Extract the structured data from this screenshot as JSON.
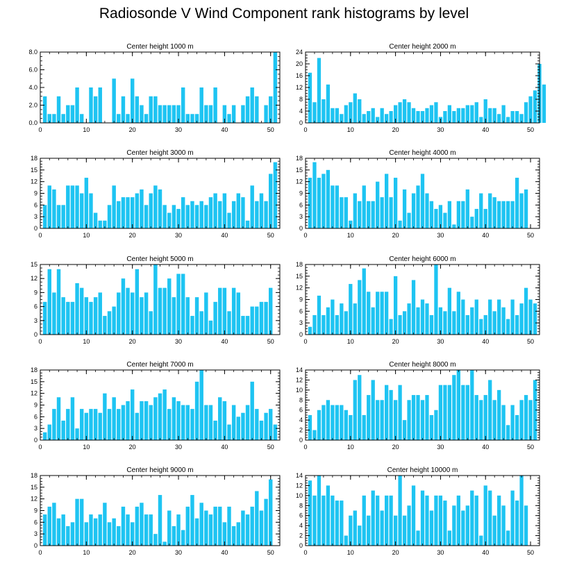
{
  "title": "Radiosonde V Wind Component rank histograms by level",
  "colors": {
    "bar": "#1ec4f2",
    "axis": "#000000",
    "background": "#ffffff"
  },
  "chart_data": [
    {
      "type": "bar",
      "title": "Center height 1000 m",
      "xlim": [
        0,
        52
      ],
      "ylim": [
        0,
        8
      ],
      "yticks": [
        0,
        2,
        4,
        6,
        8
      ],
      "ytick_labels": [
        "0.0",
        "2.0",
        "4.0",
        "6.0",
        "8.0"
      ],
      "xticks": [
        0,
        10,
        20,
        30,
        40,
        50
      ],
      "values": [
        3,
        1,
        1,
        3,
        1,
        2,
        2,
        4,
        1,
        0,
        4,
        3,
        4,
        0,
        0,
        5,
        1,
        3,
        1,
        5,
        3,
        2,
        1,
        3,
        3,
        2,
        2,
        2,
        2,
        2,
        4,
        1,
        1,
        1,
        4,
        2,
        2,
        4,
        0,
        2,
        1,
        2,
        0,
        2,
        3,
        4,
        3,
        0,
        2,
        3,
        8
      ]
    },
    {
      "type": "bar",
      "title": "Center height 2000 m",
      "xlim": [
        0,
        52
      ],
      "ylim": [
        0,
        24
      ],
      "yticks": [
        0,
        4,
        8,
        12,
        16,
        20,
        24
      ],
      "ytick_labels": [
        "0",
        "4",
        "8",
        "12",
        "16",
        "20",
        "24"
      ],
      "xticks": [
        0,
        10,
        20,
        30,
        40,
        50
      ],
      "values": [
        17,
        7,
        22,
        8,
        13,
        5,
        5,
        3,
        6,
        7,
        10,
        8,
        3,
        4,
        5,
        2,
        5,
        3,
        4,
        6,
        7,
        8,
        7,
        5,
        4,
        4,
        5,
        6,
        7,
        2,
        4,
        6,
        4,
        5,
        5,
        6,
        6,
        7,
        2,
        8,
        5,
        5,
        3,
        6,
        2,
        4,
        4,
        3,
        7,
        9,
        11,
        20,
        13
      ]
    },
    {
      "type": "bar",
      "title": "Center height 3000 m",
      "xlim": [
        0,
        52
      ],
      "ylim": [
        0,
        18
      ],
      "yticks": [
        0,
        3,
        6,
        9,
        12,
        15,
        18
      ],
      "ytick_labels": [
        "0",
        "3",
        "6",
        "9",
        "12",
        "15",
        "18"
      ],
      "xticks": [
        0,
        10,
        20,
        30,
        40,
        50
      ],
      "values": [
        6,
        11,
        10,
        6,
        6,
        11,
        11,
        11,
        9,
        13,
        9,
        4,
        2,
        2,
        6,
        11,
        7,
        8,
        8,
        8,
        9,
        10,
        6,
        9,
        11,
        10,
        6,
        4,
        6,
        5,
        8,
        6,
        7,
        6,
        7,
        6,
        8,
        9,
        7,
        9,
        4,
        7,
        9,
        8,
        2,
        11,
        7,
        9,
        7,
        14,
        17
      ]
    },
    {
      "type": "bar",
      "title": "Center height 4000 m",
      "xlim": [
        0,
        52
      ],
      "ylim": [
        0,
        18
      ],
      "yticks": [
        0,
        3,
        6,
        9,
        12,
        15,
        18
      ],
      "ytick_labels": [
        "0",
        "3",
        "6",
        "9",
        "12",
        "15",
        "18"
      ],
      "xticks": [
        0,
        10,
        20,
        30,
        40,
        50
      ],
      "values": [
        13,
        17,
        13,
        14,
        15,
        11,
        11,
        8,
        8,
        2,
        9,
        7,
        11,
        7,
        7,
        12,
        8,
        14,
        8,
        13,
        2,
        10,
        4,
        9,
        11,
        14,
        9,
        7,
        5,
        6,
        4,
        7,
        1,
        7,
        7,
        10,
        3,
        5,
        9,
        5,
        9,
        8,
        7,
        7,
        7,
        7,
        13,
        9,
        10
      ]
    },
    {
      "type": "bar",
      "title": "Center height 5000 m",
      "xlim": [
        0,
        52
      ],
      "ylim": [
        0,
        15
      ],
      "yticks": [
        0,
        3,
        6,
        9,
        12,
        15
      ],
      "ytick_labels": [
        "0",
        "3",
        "6",
        "9",
        "12",
        "15"
      ],
      "xticks": [
        0,
        10,
        20,
        30,
        40,
        50
      ],
      "values": [
        7,
        14,
        9,
        14,
        8,
        7,
        7,
        11,
        10,
        8,
        7,
        8,
        9,
        4,
        5,
        6,
        9,
        12,
        10,
        9,
        14,
        8,
        9,
        5,
        15,
        10,
        10,
        12,
        8,
        13,
        13,
        8,
        4,
        8,
        5,
        9,
        3,
        7,
        10,
        10,
        5,
        10,
        9,
        4,
        4,
        6,
        6,
        7,
        7,
        10
      ]
    },
    {
      "type": "bar",
      "title": "Center height 6000 m",
      "xlim": [
        0,
        52
      ],
      "ylim": [
        0,
        18
      ],
      "yticks": [
        0,
        3,
        6,
        9,
        12,
        15,
        18
      ],
      "ytick_labels": [
        "0",
        "3",
        "6",
        "9",
        "12",
        "15",
        "18"
      ],
      "xticks": [
        0,
        10,
        20,
        30,
        40,
        50
      ],
      "values": [
        2,
        5,
        10,
        5,
        7,
        9,
        5,
        8,
        6,
        13,
        8,
        14,
        17,
        11,
        7,
        11,
        11,
        11,
        4,
        15,
        5,
        6,
        8,
        14,
        7,
        9,
        8,
        5,
        18,
        7,
        6,
        12,
        6,
        11,
        9,
        5,
        7,
        9,
        4,
        5,
        9,
        6,
        9,
        7,
        4,
        9,
        5,
        8,
        12,
        9,
        8
      ]
    },
    {
      "type": "bar",
      "title": "Center height 7000 m",
      "xlim": [
        0,
        52
      ],
      "ylim": [
        0,
        18
      ],
      "yticks": [
        0,
        3,
        6,
        9,
        12,
        15,
        18
      ],
      "ytick_labels": [
        "0",
        "3",
        "6",
        "9",
        "12",
        "15",
        "18"
      ],
      "xticks": [
        0,
        10,
        20,
        30,
        40,
        50
      ],
      "values": [
        2,
        4,
        8,
        11,
        5,
        8,
        11,
        3,
        8,
        7,
        8,
        8,
        7,
        12,
        8,
        11,
        8,
        9,
        10,
        13,
        7,
        10,
        10,
        9,
        11,
        12,
        13,
        8,
        11,
        10,
        9,
        9,
        8,
        15,
        18,
        9,
        9,
        5,
        11,
        10,
        4,
        9,
        6,
        7,
        9,
        15,
        8,
        5,
        7,
        8,
        4
      ]
    },
    {
      "type": "bar",
      "title": "Center height 8000 m",
      "xlim": [
        0,
        52
      ],
      "ylim": [
        0,
        14
      ],
      "yticks": [
        0,
        2,
        4,
        6,
        8,
        10,
        12,
        14
      ],
      "ytick_labels": [
        "0",
        "2",
        "4",
        "6",
        "8",
        "10",
        "12",
        "14"
      ],
      "xticks": [
        0,
        10,
        20,
        30,
        40,
        50
      ],
      "values": [
        5,
        2,
        6,
        7,
        8,
        7,
        7,
        7,
        6,
        5,
        12,
        13,
        5,
        9,
        12,
        8,
        8,
        11,
        10,
        8,
        11,
        4,
        8,
        9,
        9,
        8,
        9,
        5,
        6,
        11,
        11,
        11,
        13,
        14,
        11,
        11,
        14,
        9,
        8,
        9,
        12,
        8,
        10,
        7,
        3,
        7,
        5,
        8,
        9,
        8,
        12
      ]
    },
    {
      "type": "bar",
      "title": "Center height 9000 m",
      "xlim": [
        0,
        52
      ],
      "ylim": [
        0,
        18
      ],
      "yticks": [
        0,
        3,
        6,
        9,
        12,
        15,
        18
      ],
      "ytick_labels": [
        "0",
        "3",
        "6",
        "9",
        "12",
        "15",
        "18"
      ],
      "xticks": [
        0,
        10,
        20,
        30,
        40,
        50
      ],
      "values": [
        8,
        10,
        11,
        7,
        8,
        5,
        6,
        12,
        12,
        6,
        8,
        7,
        8,
        11,
        6,
        7,
        5,
        10,
        8,
        6,
        10,
        11,
        8,
        8,
        3,
        13,
        1,
        9,
        5,
        8,
        4,
        10,
        13,
        7,
        11,
        9,
        8,
        10,
        10,
        6,
        10,
        5,
        6,
        9,
        8,
        10,
        14,
        9,
        12,
        17
      ]
    },
    {
      "type": "bar",
      "title": "Center height 10000 m",
      "xlim": [
        0,
        52
      ],
      "ylim": [
        0,
        14
      ],
      "yticks": [
        0,
        2,
        4,
        6,
        8,
        10,
        12,
        14
      ],
      "ytick_labels": [
        "0",
        "2",
        "4",
        "6",
        "8",
        "10",
        "12",
        "14"
      ],
      "xticks": [
        0,
        10,
        20,
        30,
        40,
        50
      ],
      "values": [
        13,
        10,
        14,
        10,
        12,
        10,
        9,
        9,
        2,
        6,
        7,
        4,
        10,
        6,
        11,
        10,
        7,
        10,
        10,
        6,
        14,
        6,
        8,
        12,
        3,
        11,
        10,
        7,
        10,
        10,
        9,
        3,
        8,
        10,
        7,
        8,
        11,
        10,
        2,
        12,
        11,
        6,
        10,
        8,
        3,
        11,
        9,
        14,
        8
      ]
    }
  ]
}
